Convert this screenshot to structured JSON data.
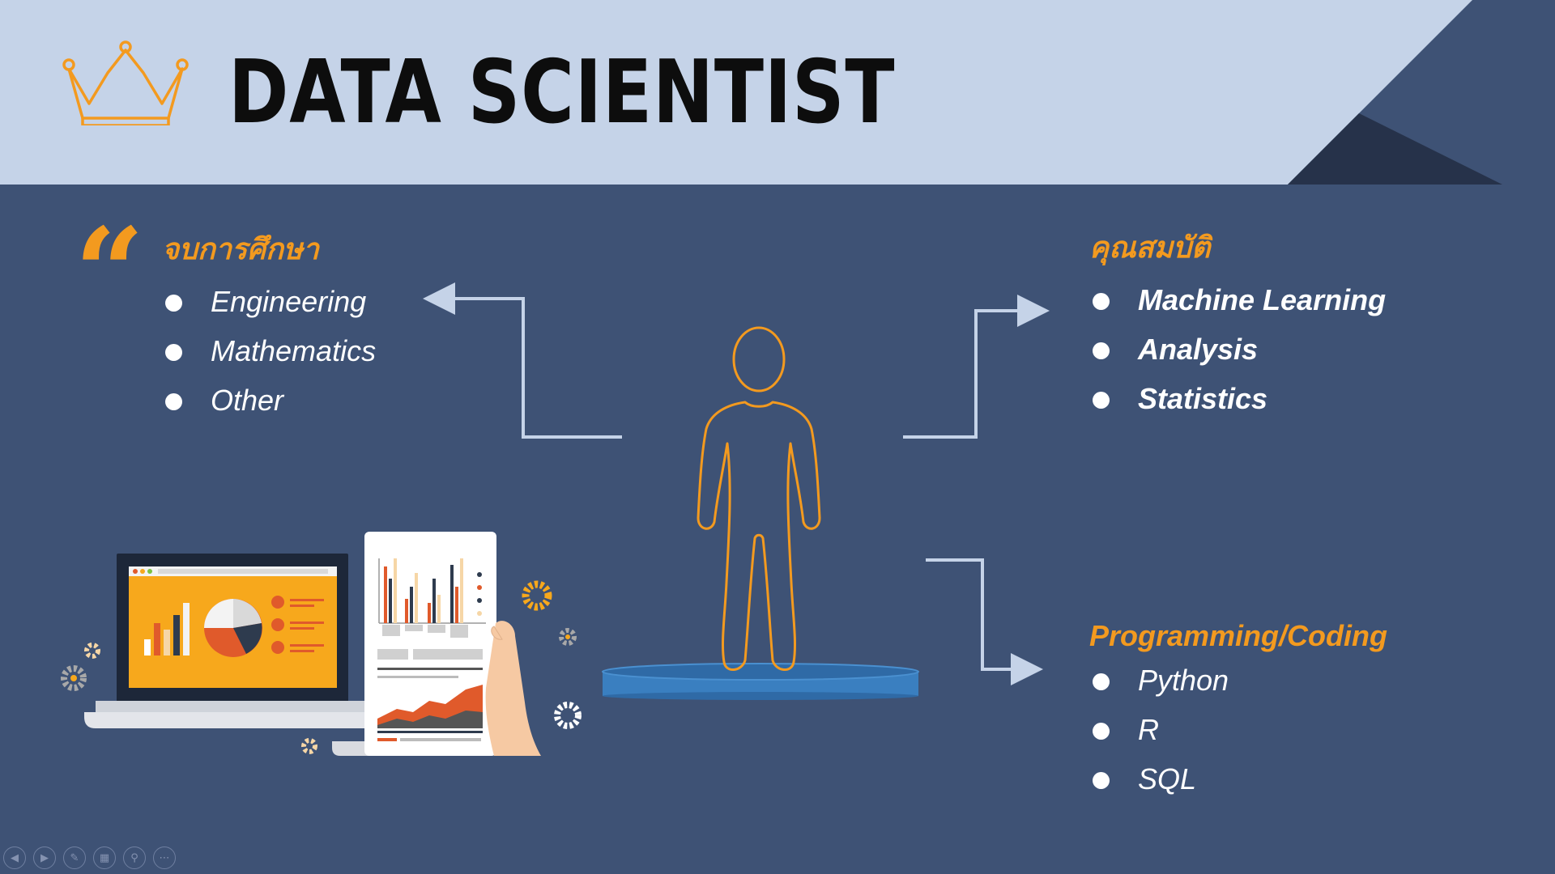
{
  "slide": {
    "title": "DATA SCIENTIST",
    "colors": {
      "background": "#3e5275",
      "header": "#c5d3e8",
      "accent": "#f39a1f",
      "text": "#ffffff",
      "arrow": "#c5d3e8",
      "platform": "#3a7fc0"
    },
    "icons": {
      "crown": "crown-outline-icon",
      "quote": "quote-mark-icon",
      "person": "person-outline-icon"
    }
  },
  "education": {
    "heading": "จบการศึกษา",
    "items": [
      "Engineering",
      "Mathematics",
      "Other"
    ]
  },
  "qualifications": {
    "heading": "คุณสมบัติ",
    "items": [
      "Machine Learning",
      "Analysis",
      "Statistics"
    ]
  },
  "programming": {
    "heading": "Programming/Coding",
    "items": [
      "Python",
      "R",
      "SQL"
    ]
  },
  "toolbar": {
    "buttons": [
      {
        "name": "previous-slide-button",
        "glyph": "◀"
      },
      {
        "name": "next-slide-button",
        "glyph": "▶"
      },
      {
        "name": "pen-tool-button",
        "glyph": "✎"
      },
      {
        "name": "slide-sorter-button",
        "glyph": "▦"
      },
      {
        "name": "zoom-button",
        "glyph": "⚲"
      },
      {
        "name": "more-options-button",
        "glyph": "⋯"
      }
    ]
  }
}
